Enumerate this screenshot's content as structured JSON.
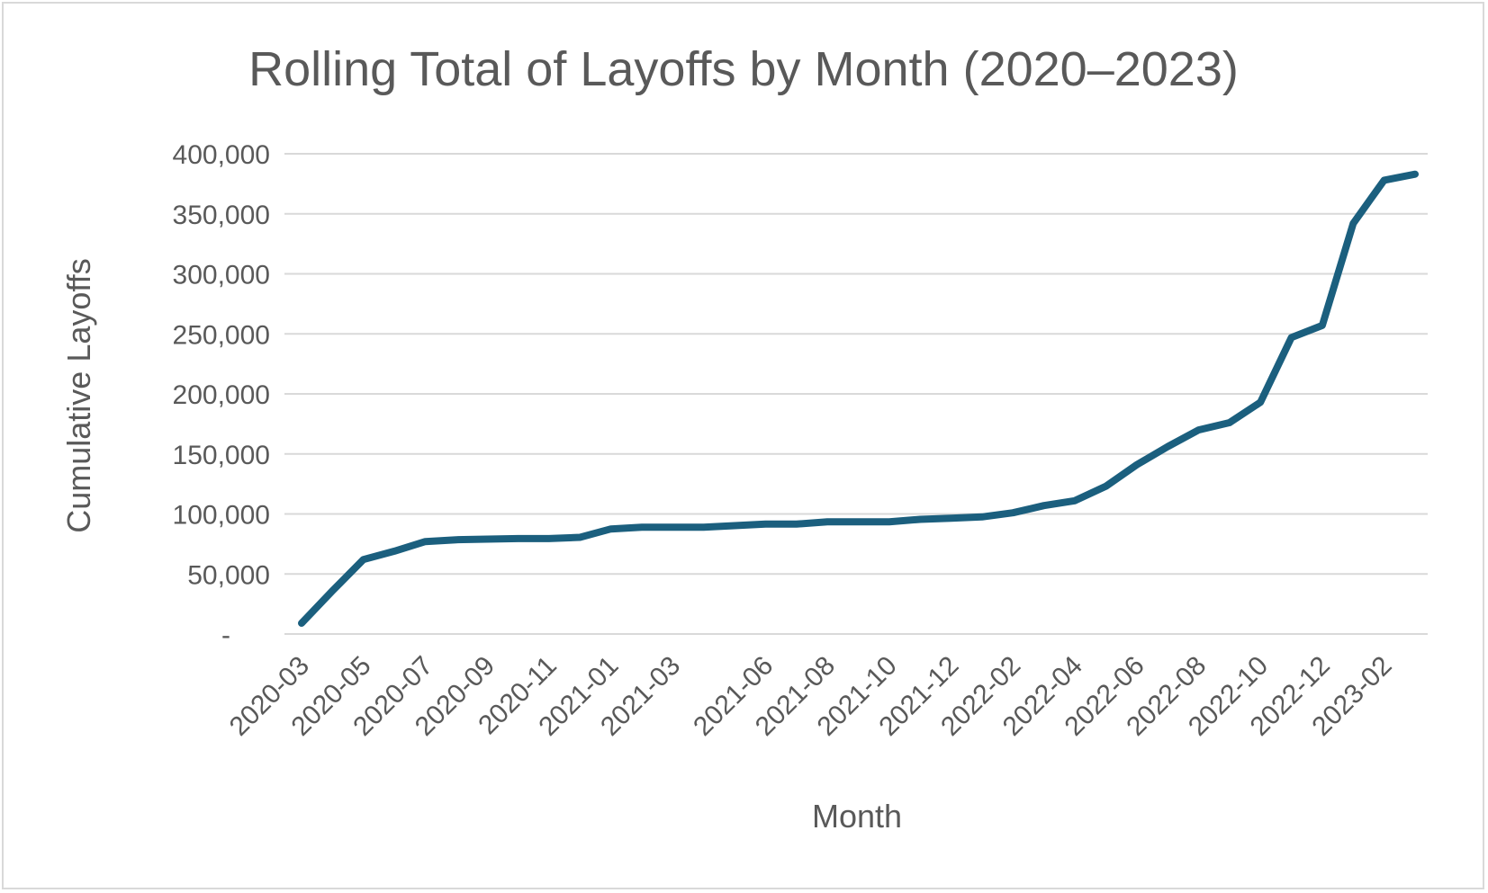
{
  "chart_data": {
    "type": "line",
    "title": "Rolling Total of Layoffs by Month (2020–2023)",
    "xlabel": "Month",
    "ylabel": "Cumulative Layoffs",
    "ylim": [
      0,
      400000
    ],
    "yticks": [
      0,
      50000,
      100000,
      150000,
      200000,
      250000,
      300000,
      350000,
      400000
    ],
    "ytick_labels": [
      "-",
      "50,000",
      "100,000",
      "150,000",
      "200,000",
      "250,000",
      "300,000",
      "350,000",
      "400,000"
    ],
    "grid": true,
    "legend": "none",
    "line_color": "#1b5f7e",
    "x_tick_labels": [
      "2020-03",
      "2020-05",
      "2020-07",
      "2020-09",
      "2020-11",
      "2021-01",
      "2021-03",
      "2021-06",
      "2021-08",
      "2021-10",
      "2021-12",
      "2022-02",
      "2022-04",
      "2022-06",
      "2022-08",
      "2022-10",
      "2022-12",
      "2023-02"
    ],
    "x": [
      "2020-03",
      "2020-04",
      "2020-05",
      "2020-06",
      "2020-07",
      "2020-08",
      "2020-09",
      "2020-10",
      "2020-11",
      "2020-12",
      "2021-01",
      "2021-02",
      "2021-03",
      "2021-04",
      "2021-06",
      "2021-07",
      "2021-08",
      "2021-09",
      "2021-10",
      "2021-11",
      "2021-12",
      "2022-01",
      "2022-02",
      "2022-03",
      "2022-04",
      "2022-05",
      "2022-06",
      "2022-07",
      "2022-08",
      "2022-09",
      "2022-10",
      "2022-11",
      "2022-12",
      "2023-01",
      "2023-02",
      "2023-03"
    ],
    "values": [
      9000,
      36000,
      62000,
      69000,
      77000,
      78500,
      79000,
      79500,
      79500,
      80500,
      87500,
      89000,
      89000,
      89000,
      91500,
      91500,
      93500,
      93500,
      93500,
      95500,
      96500,
      97500,
      101000,
      107000,
      111000,
      123000,
      141000,
      156000,
      170000,
      176000,
      193000,
      247000,
      257000,
      342000,
      378000,
      383000
    ]
  }
}
